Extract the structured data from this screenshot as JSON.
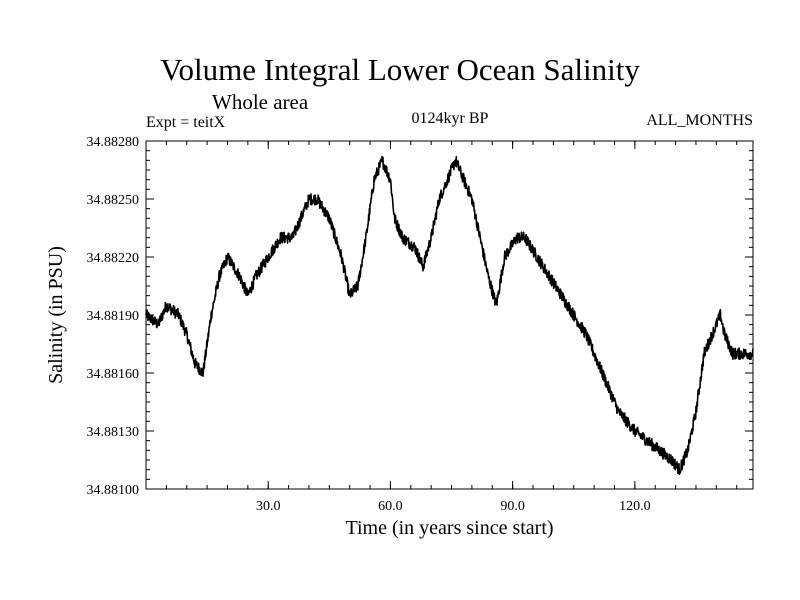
{
  "header": {
    "title": "Volume Integral Lower Ocean Salinity",
    "subtitle": "Whole area",
    "experiment": "Expt = teitX",
    "period": "0124kyr BP",
    "months": "ALL_MONTHS"
  },
  "chart_data": {
    "type": "line",
    "title": "Volume Integral Lower Ocean Salinity",
    "subtitle": "Whole area",
    "xlabel": "Time (in years since start)",
    "ylabel": "Salinity (in PSU)",
    "xlim": [
      0,
      149
    ],
    "ylim": [
      34.881,
      34.8828
    ],
    "xticks": [
      30,
      60,
      90,
      120
    ],
    "xtick_labels": [
      "30.0",
      "60.0",
      "90.0",
      "120.0"
    ],
    "yticks": [
      34.881,
      34.8813,
      34.8816,
      34.8819,
      34.8822,
      34.8825,
      34.8828
    ],
    "ytick_labels": [
      "34.88100",
      "34.88130",
      "34.88160",
      "34.88190",
      "34.88220",
      "34.88250",
      "34.88280"
    ],
    "grid": false,
    "series": [
      {
        "name": "Salinity",
        "color": "#000000",
        "anchors": [
          [
            0,
            34.8819
          ],
          [
            3,
            34.88185
          ],
          [
            5,
            34.88195
          ],
          [
            8,
            34.8819
          ],
          [
            10,
            34.8818
          ],
          [
            12,
            34.88165
          ],
          [
            14,
            34.8816
          ],
          [
            16,
            34.8819
          ],
          [
            18,
            34.8821
          ],
          [
            20,
            34.8822
          ],
          [
            23,
            34.8821
          ],
          [
            25,
            34.882
          ],
          [
            27,
            34.8821
          ],
          [
            30,
            34.8822
          ],
          [
            33,
            34.8823
          ],
          [
            36,
            34.8823
          ],
          [
            38,
            34.8824
          ],
          [
            40,
            34.8825
          ],
          [
            42,
            34.8825
          ],
          [
            45,
            34.8824
          ],
          [
            48,
            34.8822
          ],
          [
            50,
            34.882
          ],
          [
            52,
            34.88205
          ],
          [
            54,
            34.8823
          ],
          [
            56,
            34.8826
          ],
          [
            58,
            34.8827
          ],
          [
            60,
            34.8826
          ],
          [
            61,
            34.8824
          ],
          [
            63,
            34.8823
          ],
          [
            66,
            34.88225
          ],
          [
            68,
            34.88215
          ],
          [
            70,
            34.8823
          ],
          [
            72,
            34.8825
          ],
          [
            74,
            34.8826
          ],
          [
            76,
            34.8827
          ],
          [
            78,
            34.8826
          ],
          [
            80,
            34.8825
          ],
          [
            82,
            34.8823
          ],
          [
            84,
            34.8821
          ],
          [
            86,
            34.88195
          ],
          [
            88,
            34.8822
          ],
          [
            91,
            34.8823
          ],
          [
            93,
            34.8823
          ],
          [
            96,
            34.8822
          ],
          [
            99,
            34.8821
          ],
          [
            102,
            34.882
          ],
          [
            105,
            34.8819
          ],
          [
            108,
            34.8818
          ],
          [
            111,
            34.88165
          ],
          [
            114,
            34.8815
          ],
          [
            116,
            34.8814
          ],
          [
            118,
            34.88135
          ],
          [
            120,
            34.8813
          ],
          [
            123,
            34.88125
          ],
          [
            126,
            34.8812
          ],
          [
            129,
            34.88115
          ],
          [
            131,
            34.8811
          ],
          [
            133,
            34.8812
          ],
          [
            135,
            34.8814
          ],
          [
            137,
            34.8817
          ],
          [
            139,
            34.8818
          ],
          [
            141,
            34.8819
          ],
          [
            142,
            34.8818
          ],
          [
            144,
            34.8817
          ],
          [
            146,
            34.8817
          ],
          [
            149,
            34.8817
          ]
        ],
        "noise_amplitude": 3e-05
      }
    ]
  }
}
